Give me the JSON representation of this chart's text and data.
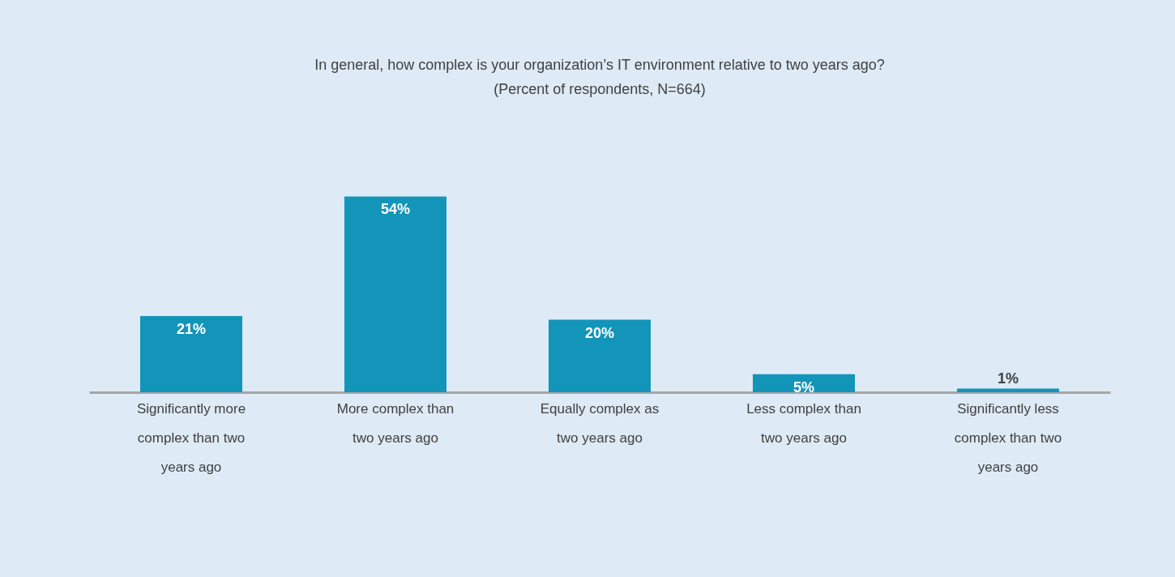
{
  "chart_data": {
    "type": "bar",
    "title": "In general, how complex is your organization’s IT environment relative to two years ago?",
    "subtitle": "(Percent of respondents, N=664)",
    "categories": [
      "Significantly more complex than two years ago",
      "More complex than two years ago",
      "Equally complex as two years ago",
      "Less complex than two years ago",
      "Significantly less complex than two years ago"
    ],
    "values": [
      21,
      54,
      20,
      5,
      1
    ],
    "value_labels": [
      "21%",
      "54%",
      "20%",
      "5%",
      "1%"
    ],
    "color": "#1395b9",
    "grid": false
  }
}
